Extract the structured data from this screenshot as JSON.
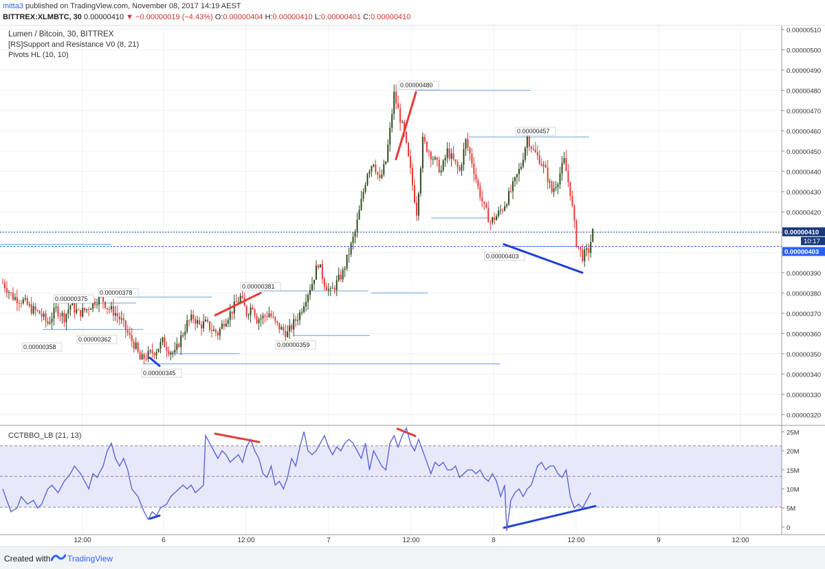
{
  "header": {
    "author": "mitta3",
    "published_text": "published on TradingView.com, November 08, 2017 14:19 AEST",
    "symbol": "BITTREX:XLMBTC, 30",
    "last": "0.00000410",
    "arrow": "▼",
    "change": "−0.00000019 (−4.43%)",
    "o_label": "O:",
    "o": "0.00000404",
    "h_label": "H:",
    "h": "0.00000410",
    "l_label": "L:",
    "l": "0.00000401",
    "c_label": "C:",
    "c": "0.00000410"
  },
  "legend": {
    "title": "Lumen / Bitcoin, 30, BITTREX",
    "indicator1": "[RS]Support and Resistance V0 (8, 21)",
    "indicator2": "Pivots HL (10, 10)",
    "sub_indicator": "CCTBBO_LB (21, 13)"
  },
  "footer": {
    "created_with": "Created with",
    "brand": "TradingView"
  },
  "colors": {
    "up": "#2e4a1c",
    "down": "#e53935",
    "sr_line": "#6f9fd8",
    "price_line": "#1a3a7a",
    "dashed_blue": "#2962ff",
    "osc_line": "#5c63d6",
    "osc_band": "#e8e8fb",
    "div_red": "#e53935",
    "div_blue": "#1f3fd6"
  },
  "chart_data": [
    {
      "type": "candlestick",
      "title": "Lumen / Bitcoin, 30, BITTREX",
      "ylim": [
        3.15e-06,
        5.12e-06
      ],
      "y_ticks": [
        "0.00000510",
        "0.00000500",
        "0.00000490",
        "0.00000480",
        "0.00000470",
        "0.00000460",
        "0.00000450",
        "0.00000440",
        "0.00000430",
        "0.00000420",
        "0.00000410",
        "0.00000400",
        "0.00000390",
        "0.00000380",
        "0.00000370",
        "0.00000360",
        "0.00000350",
        "0.00000340",
        "0.00000330",
        "0.00000320"
      ],
      "x_ticks": [
        "12:00",
        "6",
        "12:00",
        "7",
        "12:00",
        "8",
        "12:00",
        "9",
        "12:00"
      ],
      "current_price": "0.00000410",
      "countdown": "10:17",
      "marker_price": "0.00000403",
      "pivot_labels": [
        {
          "text": "0.00000375",
          "value": 3.75e-06
        },
        {
          "text": "0.00000378",
          "value": 3.78e-06
        },
        {
          "text": "0.00000358",
          "value": 3.58e-06
        },
        {
          "text": "0.00000362",
          "value": 3.62e-06
        },
        {
          "text": "0.00000345",
          "value": 3.45e-06
        },
        {
          "text": "0.00000381",
          "value": 3.81e-06
        },
        {
          "text": "0.00000359",
          "value": 3.59e-06
        },
        {
          "text": "0.00000480",
          "value": 4.8e-06
        },
        {
          "text": "0.00000457",
          "value": 4.57e-06
        },
        {
          "text": "0.00000403",
          "value": 4.03e-06
        }
      ],
      "close_path": [
        [
          0,
          385
        ],
        [
          5,
          378
        ],
        [
          10,
          376
        ],
        [
          14,
          372
        ],
        [
          18,
          370
        ],
        [
          22,
          365
        ],
        [
          26,
          372
        ],
        [
          30,
          368
        ],
        [
          33,
          374
        ],
        [
          37,
          370
        ],
        [
          41,
          372
        ],
        [
          45,
          376
        ],
        [
          48,
          378
        ],
        [
          51,
          373
        ],
        [
          55,
          370
        ],
        [
          58,
          366
        ],
        [
          62,
          358
        ],
        [
          65,
          353
        ],
        [
          67,
          347
        ],
        [
          69,
          348
        ],
        [
          72,
          350
        ],
        [
          75,
          352
        ],
        [
          78,
          356
        ],
        [
          81,
          352
        ],
        [
          84,
          350
        ],
        [
          87,
          358
        ],
        [
          90,
          365
        ],
        [
          93,
          368
        ],
        [
          96,
          364
        ],
        [
          99,
          365
        ],
        [
          102,
          362
        ],
        [
          105,
          360
        ],
        [
          108,
          366
        ],
        [
          111,
          370
        ],
        [
          114,
          375
        ],
        [
          116,
          378
        ],
        [
          119,
          370
        ],
        [
          122,
          374
        ],
        [
          124,
          367
        ],
        [
          127,
          368
        ],
        [
          130,
          370
        ],
        [
          133,
          365
        ],
        [
          136,
          362
        ],
        [
          139,
          360
        ],
        [
          142,
          365
        ],
        [
          145,
          370
        ],
        [
          148,
          378
        ],
        [
          151,
          385
        ],
        [
          154,
          395
        ],
        [
          157,
          385
        ],
        [
          160,
          380
        ],
        [
          163,
          385
        ],
        [
          166,
          390
        ],
        [
          169,
          400
        ],
        [
          172,
          410
        ],
        [
          175,
          425
        ],
        [
          178,
          440
        ],
        [
          181,
          445
        ],
        [
          184,
          435
        ],
        [
          187,
          445
        ],
        [
          189,
          460
        ],
        [
          191,
          478
        ],
        [
          193,
          470
        ],
        [
          196,
          458
        ],
        [
          199,
          440
        ],
        [
          202,
          420
        ],
        [
          205,
          455
        ],
        [
          208,
          450
        ],
        [
          211,
          445
        ],
        [
          214,
          440
        ],
        [
          217,
          450
        ],
        [
          220,
          445
        ],
        [
          223,
          440
        ],
        [
          226,
          455
        ],
        [
          229,
          445
        ],
        [
          232,
          432
        ],
        [
          235,
          422
        ],
        [
          238,
          415
        ],
        [
          241,
          418
        ],
        [
          244,
          422
        ],
        [
          247,
          428
        ],
        [
          250,
          435
        ],
        [
          253,
          443
        ],
        [
          256,
          457
        ],
        [
          259,
          450
        ],
        [
          262,
          446
        ],
        [
          265,
          440
        ],
        [
          268,
          430
        ],
        [
          271,
          436
        ],
        [
          274,
          445
        ],
        [
          277,
          430
        ],
        [
          280,
          405
        ],
        [
          283,
          398
        ],
        [
          286,
          401
        ],
        [
          288,
          410
        ]
      ]
    },
    {
      "type": "line",
      "title": "CCTBBO_LB (21, 13)",
      "ylim": [
        -2,
        26.5
      ],
      "y_ticks": [
        "25M",
        "20M",
        "15M",
        "10M",
        "5M",
        "0"
      ],
      "band": [
        5.2,
        21.3
      ],
      "midline": 13.3,
      "series": [
        {
          "name": "CCTBBO_LB",
          "values": [
            [
              0,
              10
            ],
            [
              4,
              4
            ],
            [
              7,
              5
            ],
            [
              9,
              8
            ],
            [
              12,
              6
            ],
            [
              15,
              7
            ],
            [
              17,
              5
            ],
            [
              19,
              6
            ],
            [
              22,
              10
            ],
            [
              24,
              11
            ],
            [
              27,
              9
            ],
            [
              30,
              12
            ],
            [
              33,
              14
            ],
            [
              35,
              16
            ],
            [
              38,
              14
            ],
            [
              40,
              12
            ],
            [
              42,
              10
            ],
            [
              44,
              14
            ],
            [
              46,
              13
            ],
            [
              49,
              16
            ],
            [
              51,
              20
            ],
            [
              53,
              22
            ],
            [
              55,
              18
            ],
            [
              57,
              16
            ],
            [
              59,
              18
            ],
            [
              61,
              15
            ],
            [
              63,
              10
            ],
            [
              66,
              8
            ],
            [
              69,
              4
            ],
            [
              71,
              2
            ],
            [
              73,
              4
            ],
            [
              75,
              3
            ],
            [
              77,
              5
            ],
            [
              80,
              6
            ],
            [
              82,
              8
            ],
            [
              84,
              9
            ],
            [
              86,
              10
            ],
            [
              88,
              11
            ],
            [
              90,
              10
            ],
            [
              92,
              11
            ],
            [
              94,
              9
            ],
            [
              96,
              10
            ],
            [
              98,
              11
            ],
            [
              99,
              24
            ],
            [
              101,
              22
            ],
            [
              103,
              20
            ],
            [
              105,
              18
            ],
            [
              107,
              20
            ],
            [
              109,
              19
            ],
            [
              111,
              17
            ],
            [
              113,
              18
            ],
            [
              115,
              19
            ],
            [
              117,
              17
            ],
            [
              119,
              21
            ],
            [
              121,
              23
            ],
            [
              123,
              20
            ],
            [
              125,
              18
            ],
            [
              127,
              14
            ],
            [
              129,
              13
            ],
            [
              131,
              16
            ],
            [
              133,
              11
            ],
            [
              135,
              12
            ],
            [
              137,
              10
            ],
            [
              139,
              13
            ],
            [
              141,
              18
            ],
            [
              143,
              16
            ],
            [
              145,
              21
            ],
            [
              147,
              25
            ],
            [
              149,
              20
            ],
            [
              151,
              19
            ],
            [
              153,
              20
            ],
            [
              155,
              22
            ],
            [
              157,
              24
            ],
            [
              159,
              21
            ],
            [
              161,
              19
            ],
            [
              163,
              21
            ],
            [
              165,
              20
            ],
            [
              167,
              22
            ],
            [
              169,
              23
            ],
            [
              171,
              22
            ],
            [
              173,
              20
            ],
            [
              175,
              18
            ],
            [
              177,
              22
            ],
            [
              179,
              15
            ],
            [
              181,
              20
            ],
            [
              183,
              18
            ],
            [
              185,
              16
            ],
            [
              187,
              15
            ],
            [
              189,
              22
            ],
            [
              191,
              24
            ],
            [
              193,
              21
            ],
            [
              195,
              24
            ],
            [
              197,
              26
            ],
            [
              199,
              22
            ],
            [
              201,
              20
            ],
            [
              203,
              23
            ],
            [
              205,
              20
            ],
            [
              207,
              17
            ],
            [
              209,
              14
            ],
            [
              211,
              17
            ],
            [
              213,
              16
            ],
            [
              215,
              17
            ],
            [
              217,
              15
            ],
            [
              219,
              15
            ],
            [
              221,
              16
            ],
            [
              223,
              13
            ],
            [
              225,
              14
            ],
            [
              227,
              15
            ],
            [
              229,
              15
            ],
            [
              231,
              14
            ],
            [
              233,
              15
            ],
            [
              235,
              13
            ],
            [
              237,
              12
            ],
            [
              239,
              14
            ],
            [
              241,
              12
            ],
            [
              243,
              8
            ],
            [
              245,
              11
            ],
            [
              246,
              -1
            ],
            [
              248,
              7
            ],
            [
              250,
              9
            ],
            [
              252,
              10
            ],
            [
              254,
              8
            ],
            [
              256,
              10
            ],
            [
              258,
              11
            ],
            [
              261,
              16
            ],
            [
              263,
              17
            ],
            [
              265,
              15
            ],
            [
              267,
              16
            ],
            [
              269,
              16
            ],
            [
              271,
              14
            ],
            [
              273,
              13
            ],
            [
              275,
              15
            ],
            [
              277,
              8
            ],
            [
              279,
              5
            ],
            [
              281,
              6
            ],
            [
              283,
              5
            ],
            [
              285,
              7
            ],
            [
              287,
              9
            ]
          ]
        }
      ]
    }
  ]
}
